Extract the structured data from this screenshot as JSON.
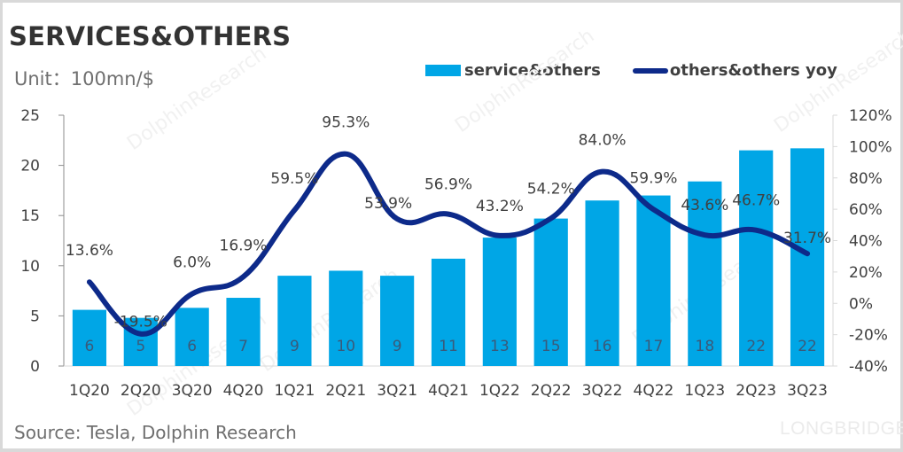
{
  "title": "SERVICES&OTHERS",
  "unit": "Unit：100mn/$",
  "source": "Source: Tesla, Dolphin Research",
  "brand_watermark": "LONGBRIDGE",
  "watermark_text": "DolphinResearch",
  "colors": {
    "bar": "#00a6e6",
    "line": "#0d2a8a",
    "text": "#404040"
  },
  "chart_data": {
    "type": "bar",
    "title": "SERVICES&OTHERS",
    "xlabel": "",
    "ylabel": "Unit：100mn/$",
    "y2label": "",
    "categories": [
      "1Q20",
      "2Q20",
      "3Q20",
      "4Q20",
      "1Q21",
      "2Q21",
      "3Q21",
      "4Q21",
      "1Q22",
      "2Q22",
      "3Q22",
      "4Q22",
      "1Q23",
      "2Q23",
      "3Q23"
    ],
    "series": [
      {
        "name": "service&others",
        "type": "bar",
        "axis": "left",
        "values": [
          5.6,
          4.8,
          5.8,
          6.8,
          9.0,
          9.5,
          9.0,
          10.7,
          12.8,
          14.7,
          16.5,
          17.0,
          18.4,
          21.5,
          21.7
        ],
        "labels": [
          "6",
          "5",
          "6",
          "7",
          "9",
          "10",
          "9",
          "11",
          "13",
          "15",
          "16",
          "17",
          "18",
          "22",
          "22"
        ]
      },
      {
        "name": "others&others yoy",
        "type": "line",
        "axis": "right",
        "values": [
          13.6,
          -19.5,
          6.0,
          16.9,
          59.5,
          95.3,
          53.9,
          56.9,
          43.2,
          54.2,
          84.0,
          59.9,
          43.6,
          46.7,
          31.7
        ],
        "labels": [
          "13.6%",
          "-19.5%",
          "6.0%",
          "16.9%",
          "59.5%",
          "95.3%",
          "53.9%",
          "56.9%",
          "43.2%",
          "54.2%",
          "84.0%",
          "59.9%",
          "43.6%",
          "46.7%",
          "31.7%"
        ]
      }
    ],
    "ylim": [
      0,
      25
    ],
    "yticks": [
      "0",
      "5",
      "10",
      "15",
      "20",
      "25"
    ],
    "y2lim": [
      -40,
      120
    ],
    "y2ticks": [
      "-40%",
      "-20%",
      "0%",
      "20%",
      "40%",
      "60%",
      "80%",
      "100%",
      "120%"
    ],
    "grid": false,
    "legend": "top-right"
  }
}
